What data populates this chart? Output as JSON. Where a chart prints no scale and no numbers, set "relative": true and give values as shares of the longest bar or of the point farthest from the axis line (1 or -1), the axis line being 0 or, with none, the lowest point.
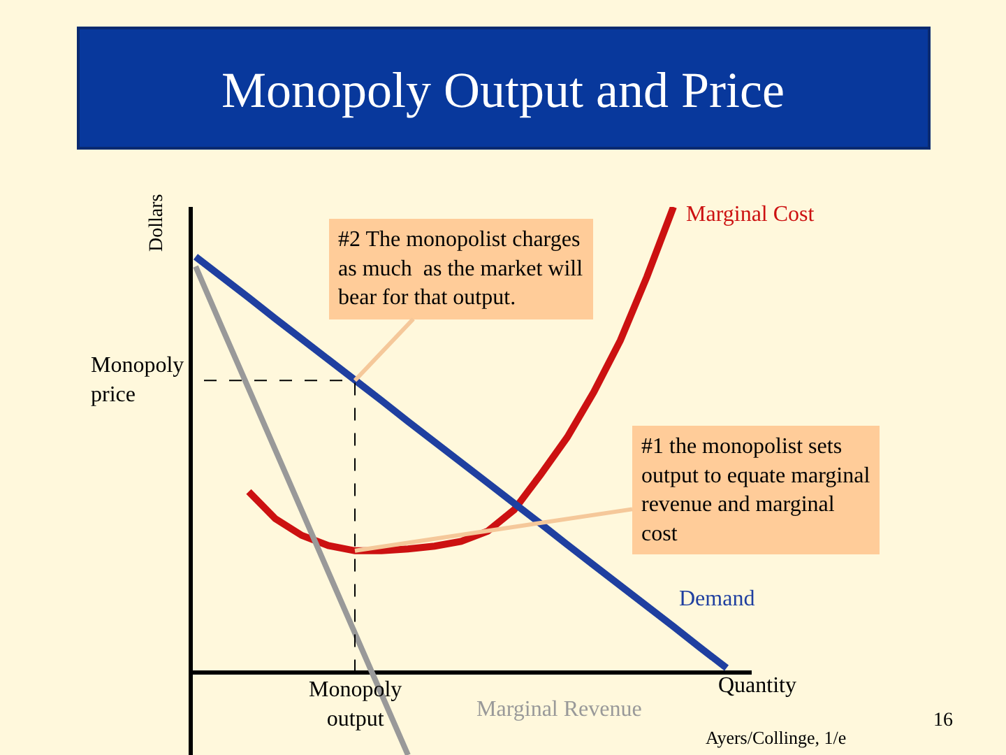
{
  "chart_data": {
    "type": "line",
    "title": "Monopoly Output and Price",
    "xlabel": "Quantity",
    "ylabel": "Dollars",
    "relative": true,
    "legend": false,
    "grid": false,
    "marker": "none",
    "line_style": "solid",
    "categories": [
      null,
      null,
      null,
      null,
      null,
      null,
      null,
      null,
      null,
      null,
      null,
      null,
      null,
      null,
      null,
      null,
      null,
      null,
      null,
      null,
      null
    ],
    "series": [
      {
        "name": "Marginal Cost",
        "color": "#cc1111",
        "values": [
          null,
          null,
          0.388,
          0.33,
          0.294,
          0.272,
          0.261,
          0.261,
          0.265,
          0.271,
          0.281,
          0.303,
          0.349,
          0.425,
          0.505,
          0.602,
          0.713,
          0.85,
          1.0,
          null,
          null
        ]
      },
      {
        "name": "Demand",
        "color": "#1f3fa0",
        "values": [
          0.893,
          0.849,
          0.805,
          0.76,
          0.716,
          0.672,
          0.628,
          0.584,
          0.539,
          0.495,
          0.451,
          0.407,
          0.363,
          0.319,
          0.274,
          0.23,
          0.186,
          0.142,
          0.098,
          0.053,
          0.009
        ]
      },
      {
        "name": "Marginal Revenue",
        "color": "#999999",
        "values": [
          0.872,
          0.74,
          0.609,
          0.478,
          0.347,
          0.215,
          0.084,
          -0.047,
          -0.178,
          null,
          null,
          null,
          null,
          null,
          null,
          null,
          null,
          null,
          null,
          null,
          null
        ]
      }
    ],
    "ref_lines": [
      {
        "axis": "y",
        "value": 0.627,
        "label": "Monopoly price",
        "line_style": "dashed"
      },
      {
        "axis": "x",
        "label": "Monopoly output",
        "line_style": "dashed"
      }
    ],
    "annotations": [
      "#2 The monopolist charges\nas much  as the market will\nbear for that output.",
      "#1 the monopolist sets\noutput to equate marginal\nrevenue and marginal\ncost",
      "Ayers/Collinge, 1/e",
      "16"
    ]
  }
}
